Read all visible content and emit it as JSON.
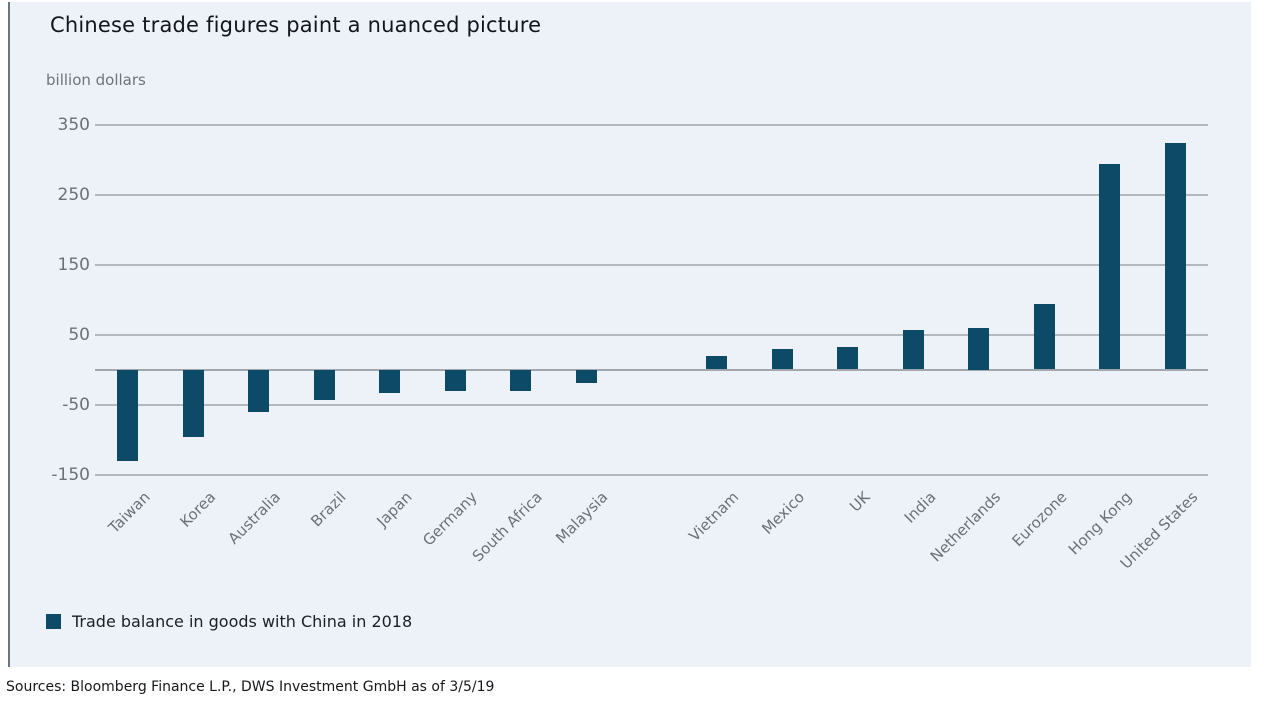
{
  "page": {
    "title": "Chinese trade figures paint a nuanced picture",
    "unit_label": "billion dollars",
    "source_line": "Sources: Bloomberg Finance L.P., DWS Investment GmbH as of 3/5/19"
  },
  "legend": {
    "label": "Trade balance in goods with China in 2018"
  },
  "colors": {
    "panel_bg": "#edf1f8",
    "bar": "#0d4a68",
    "gridline": "#b3b7be",
    "zero_line": "#a2a7ae",
    "gray_text": "#6d7176",
    "title_text": "#121519",
    "accent_border": "#6b7581"
  },
  "chart_data": {
    "type": "bar",
    "title": "Chinese trade figures paint a nuanced picture",
    "xlabel": "",
    "ylabel": "billion dollars",
    "categories": [
      "Taiwan",
      "Korea",
      "Australia",
      "Brazil",
      "Japan",
      "Germany",
      "South Africa",
      "Malaysia",
      "Vietnam",
      "Mexico",
      "UK",
      "India",
      "Netherlands",
      "Eurozone",
      "Hong Kong",
      "United States"
    ],
    "values": [
      -130,
      -96,
      -60,
      -44,
      -34,
      -31,
      -30,
      -19,
      19,
      29,
      32,
      56,
      60,
      94,
      293,
      323
    ],
    "series_name": "Trade balance in goods with China in 2018",
    "y_ticks": [
      350,
      250,
      150,
      50,
      -50,
      -150
    ],
    "ylim": [
      -150,
      350
    ],
    "grid": true,
    "gap_after_index": 7,
    "legend_position": "bottom-left",
    "bar_color": "#0d4a68"
  }
}
